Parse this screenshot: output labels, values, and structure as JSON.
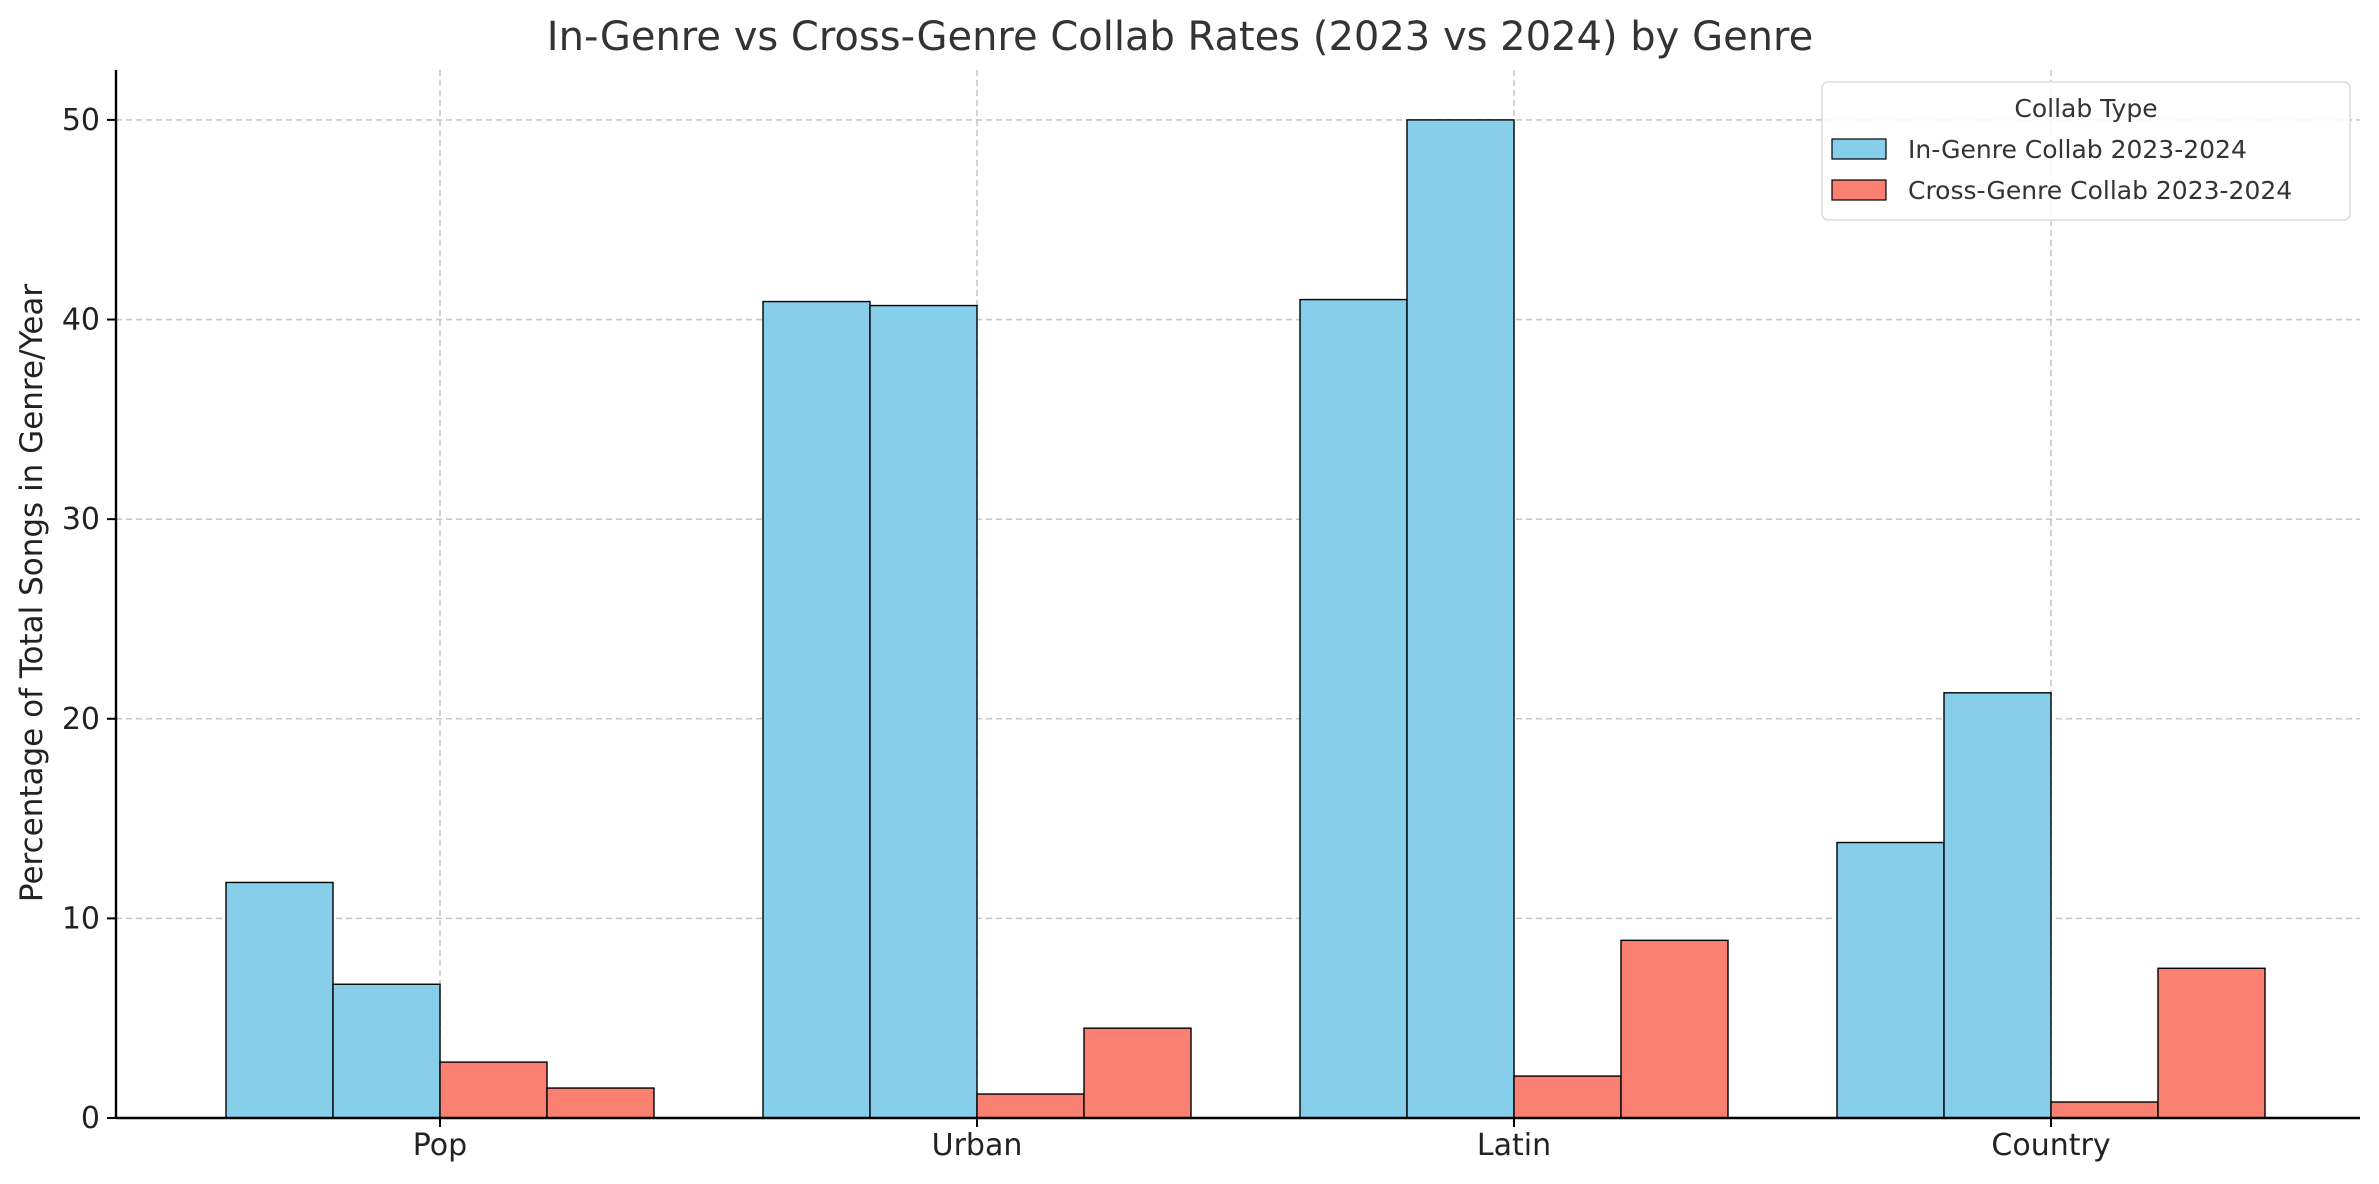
{
  "chart_data": {
    "type": "bar",
    "title": "In-Genre vs Cross-Genre Collab Rates (2023 vs 2024) by Genre",
    "xlabel": "",
    "ylabel": "Percentage of Total Songs in Genre/Year",
    "categories": [
      "Pop",
      "Urban",
      "Latin",
      "Country"
    ],
    "ylim": [
      0,
      52.5
    ],
    "yticks": [
      0,
      10,
      20,
      30,
      40,
      50
    ],
    "grid": true,
    "series": [
      {
        "name": "In-Genre Collab 2023-2024",
        "color": "#87CEEB",
        "values": [
          11.8,
          40.9,
          41.0,
          13.8
        ]
      },
      {
        "name": "In-Genre Collab 2023-2024",
        "color": "#87CEEB",
        "values": [
          6.7,
          40.7,
          50.0,
          21.3
        ]
      },
      {
        "name": "Cross-Genre Collab 2023-2024",
        "color": "#FA8072",
        "values": [
          2.8,
          1.2,
          2.1,
          0.8
        ]
      },
      {
        "name": "Cross-Genre Collab 2023-2024",
        "color": "#FA8072",
        "values": [
          1.5,
          4.5,
          8.9,
          7.5
        ]
      }
    ],
    "legend": {
      "title": "Collab Type",
      "position": "top-right",
      "entries": [
        {
          "label": "In-Genre Collab 2023-2024",
          "color": "#87CEEB"
        },
        {
          "label": "Cross-Genre Collab 2023-2024",
          "color": "#FA8072"
        }
      ]
    }
  }
}
